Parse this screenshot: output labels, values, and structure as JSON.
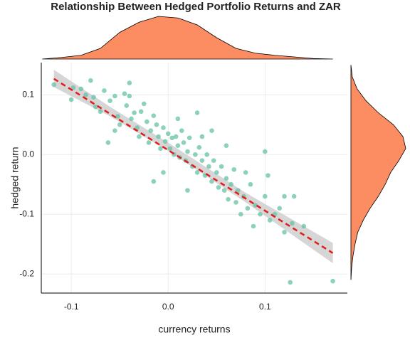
{
  "chart_data": {
    "type": "scatter",
    "title": "Relationship Between Hedged Portfolio Returns and ZAR",
    "x_label": "currency returns",
    "y_label": "hedged return",
    "xlim": [
      -0.131,
      0.185
    ],
    "ylim": [
      -0.232,
      0.154
    ],
    "xticks": [
      -0.1,
      {
        "value": 0,
        "label": "0.0"
      },
      0.1
    ],
    "yticks": [
      -0.2,
      -0.1,
      {
        "value": 0,
        "label": "0.0"
      },
      0.1
    ],
    "grid": true,
    "color": "#66c2a5",
    "x": [
      -0.118,
      -0.1,
      -0.098,
      -0.09,
      -0.08,
      -0.085,
      -0.077,
      -0.07,
      -0.066,
      -0.06,
      -0.055,
      -0.052,
      -0.05,
      -0.055,
      -0.045,
      -0.043,
      -0.04,
      -0.038,
      -0.035,
      -0.032,
      -0.03,
      -0.028,
      -0.025,
      -0.022,
      -0.02,
      -0.018,
      -0.015,
      -0.012,
      -0.01,
      -0.008,
      -0.005,
      -0.003,
      0.0,
      0.002,
      0.004,
      0.006,
      0.008,
      0.01,
      0.012,
      0.014,
      0.016,
      0.018,
      0.02,
      0.022,
      0.025,
      0.028,
      0.03,
      0.03,
      0.032,
      0.035,
      0.038,
      0.04,
      0.042,
      0.045,
      0.047,
      0.05,
      0.052,
      0.055,
      0.058,
      0.06,
      0.062,
      0.065,
      0.068,
      0.07,
      0.072,
      0.075,
      0.078,
      0.08,
      0.082,
      0.085,
      0.088,
      0.09,
      0.095,
      0.1,
      0.1,
      0.103,
      0.105,
      0.11,
      0.115,
      0.12,
      0.12,
      0.128,
      0.13,
      0.14,
      0.126,
      0.17,
      -0.015,
      -0.005,
      0.045,
      -0.062,
      0.02,
      0.06,
      -0.04,
      0.01,
      -0.075,
      0.035
    ],
    "y": [
      0.117,
      0.092,
      0.112,
      0.11,
      0.124,
      0.1,
      0.096,
      0.072,
      0.107,
      0.09,
      0.098,
      0.064,
      0.05,
      0.04,
      0.102,
      0.082,
      0.098,
      0.06,
      0.07,
      0.045,
      0.03,
      0.072,
      0.085,
      0.055,
      0.02,
      0.04,
      0.065,
      0.05,
      0.03,
      0.01,
      0.045,
      0.022,
      0.035,
      0.01,
      0.028,
      0.0,
      0.03,
      0.015,
      -0.005,
      0.04,
      0.02,
      -0.01,
      0.005,
      0.028,
      -0.02,
      0.0,
      0.07,
      -0.03,
      0.012,
      -0.01,
      -0.035,
      0.0,
      -0.02,
      -0.045,
      -0.01,
      -0.03,
      -0.055,
      -0.02,
      -0.06,
      -0.04,
      -0.075,
      -0.05,
      -0.025,
      -0.08,
      -0.06,
      -0.1,
      -0.07,
      -0.03,
      -0.09,
      -0.05,
      -0.12,
      -0.085,
      -0.1,
      0.005,
      -0.07,
      -0.035,
      -0.11,
      -0.1,
      -0.09,
      -0.13,
      -0.07,
      -0.115,
      -0.07,
      -0.12,
      -0.214,
      -0.212,
      -0.045,
      -0.03,
      0.04,
      0.02,
      -0.06,
      0.015,
      0.12,
      0.06,
      0.08,
      0.03
    ],
    "fit": {
      "color": "#e41a1c",
      "x": [
        -0.118,
        0.17
      ],
      "y": [
        0.127,
        -0.165
      ]
    },
    "band": {
      "color": "#c8c8c8",
      "x": [
        -0.118,
        -0.06,
        0.0,
        0.08,
        0.17
      ],
      "lower": [
        0.113,
        0.064,
        0.006,
        -0.08,
        -0.182
      ],
      "upper": [
        0.142,
        0.08,
        0.02,
        -0.064,
        -0.148
      ]
    },
    "x_density": {
      "color": "#fc8d62",
      "x": [
        -0.13,
        -0.11,
        -0.09,
        -0.07,
        -0.05,
        -0.03,
        -0.01,
        0.01,
        0.03,
        0.05,
        0.07,
        0.09,
        0.11,
        0.13,
        0.15,
        0.17
      ],
      "density": [
        0,
        0.3,
        0.7,
        2,
        5,
        6.9,
        8,
        7.7,
        6.4,
        4,
        2,
        1.1,
        0.7,
        0.4,
        0.1,
        0
      ]
    },
    "y_density": {
      "color": "#fc8d62",
      "y": [
        -0.21,
        -0.19,
        -0.17,
        -0.15,
        -0.13,
        -0.11,
        -0.09,
        -0.07,
        -0.05,
        -0.03,
        -0.01,
        0.01,
        0.03,
        0.05,
        0.07,
        0.09,
        0.11,
        0.13,
        0.15
      ],
      "density": [
        0,
        0.1,
        0.3,
        0.6,
        1,
        1.8,
        2.8,
        4,
        5,
        5.8,
        7,
        8,
        7.6,
        6.2,
        4,
        2.2,
        0.9,
        0.2,
        0
      ]
    }
  }
}
